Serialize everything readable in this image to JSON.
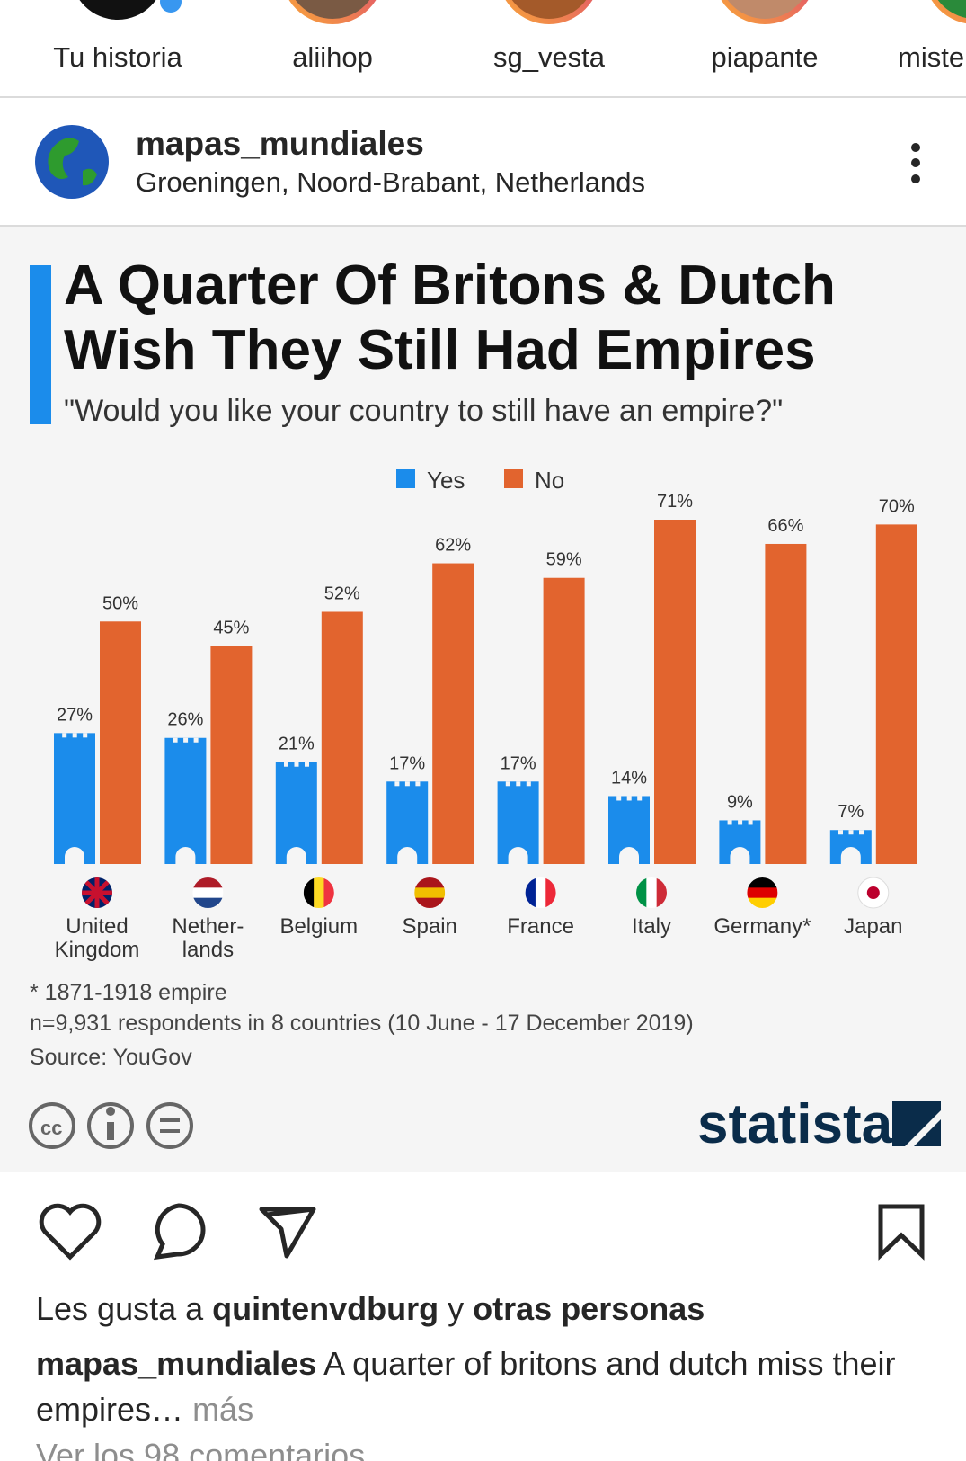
{
  "stories": [
    {
      "name": "Tu historia"
    },
    {
      "name": "aliihop"
    },
    {
      "name": "sg_vesta"
    },
    {
      "name": "piapante"
    },
    {
      "name": "miste"
    }
  ],
  "post": {
    "username": "mapas_mundiales",
    "location": "Groeningen, Noord-Brabant, Netherlands"
  },
  "chart_data": {
    "type": "bar",
    "title": "A Quarter Of Britons & Dutch\nWish They Still Had Empires",
    "subtitle": "\"Would you like your country to still have an empire?\"",
    "categories": [
      "United\nKingdom",
      "Nether-\nlands",
      "Belgium",
      "Spain",
      "France",
      "Italy",
      "Germany*",
      "Japan"
    ],
    "series": [
      {
        "name": "Yes",
        "color": "#1b8ceb",
        "values": [
          27,
          26,
          21,
          17,
          17,
          14,
          9,
          7
        ],
        "value_labels": [
          "27%",
          "26%",
          "21%",
          "17%",
          "17%",
          "14%",
          "9%",
          "7%"
        ]
      },
      {
        "name": "No",
        "color": "#e2642e",
        "values": [
          50,
          45,
          52,
          62,
          59,
          71,
          66,
          70
        ],
        "value_labels": [
          "50%",
          "45%",
          "52%",
          "62%",
          "59%",
          "71%",
          "66%",
          "70%"
        ]
      }
    ],
    "notes": [
      "* 1871-1918 empire",
      "n=9,931 respondents in 8 countries (10 June - 17 December 2019)",
      "Source: YouGov"
    ],
    "logo": "statista"
  },
  "likes": {
    "prefix": "Les gusta a",
    "user": "quintenvdburg",
    "joiner": "y",
    "others": "otras personas"
  },
  "caption": {
    "username": "mapas_mundiales",
    "text": "A quarter of britons and dutch miss their empires…",
    "more": "más"
  },
  "comments": "Ver los 98 comentarios"
}
